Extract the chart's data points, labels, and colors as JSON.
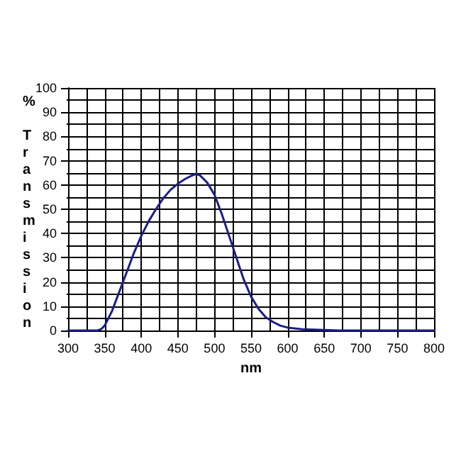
{
  "chart_data": {
    "type": "line",
    "xlabel": "nm",
    "ylabel": "% Transmission",
    "x": [
      300,
      340,
      345,
      350,
      360,
      370,
      380,
      390,
      400,
      410,
      420,
      430,
      440,
      450,
      460,
      470,
      475,
      480,
      490,
      500,
      510,
      520,
      530,
      540,
      550,
      560,
      570,
      580,
      590,
      600,
      620,
      650,
      670,
      800
    ],
    "series": [
      {
        "color": "#1c1c8c",
        "values": [
          0,
          0,
          0.5,
          2,
          8,
          16,
          24,
          32,
          39,
          45,
          50,
          54.5,
          58,
          60.5,
          62.5,
          64,
          64.5,
          64,
          61,
          56,
          48,
          39,
          30,
          21,
          14,
          9,
          5.5,
          3.5,
          2,
          1.2,
          0.5,
          0.2,
          0,
          0
        ]
      }
    ],
    "xlim": [
      300,
      800
    ],
    "xticks": [
      300,
      350,
      400,
      450,
      500,
      550,
      600,
      650,
      700,
      750,
      800
    ],
    "ylim": [
      0,
      100
    ],
    "yticks": [
      0,
      10,
      20,
      30,
      40,
      50,
      60,
      70,
      80,
      90,
      100
    ],
    "grid": true,
    "marker": "none",
    "line_style": "solid"
  }
}
